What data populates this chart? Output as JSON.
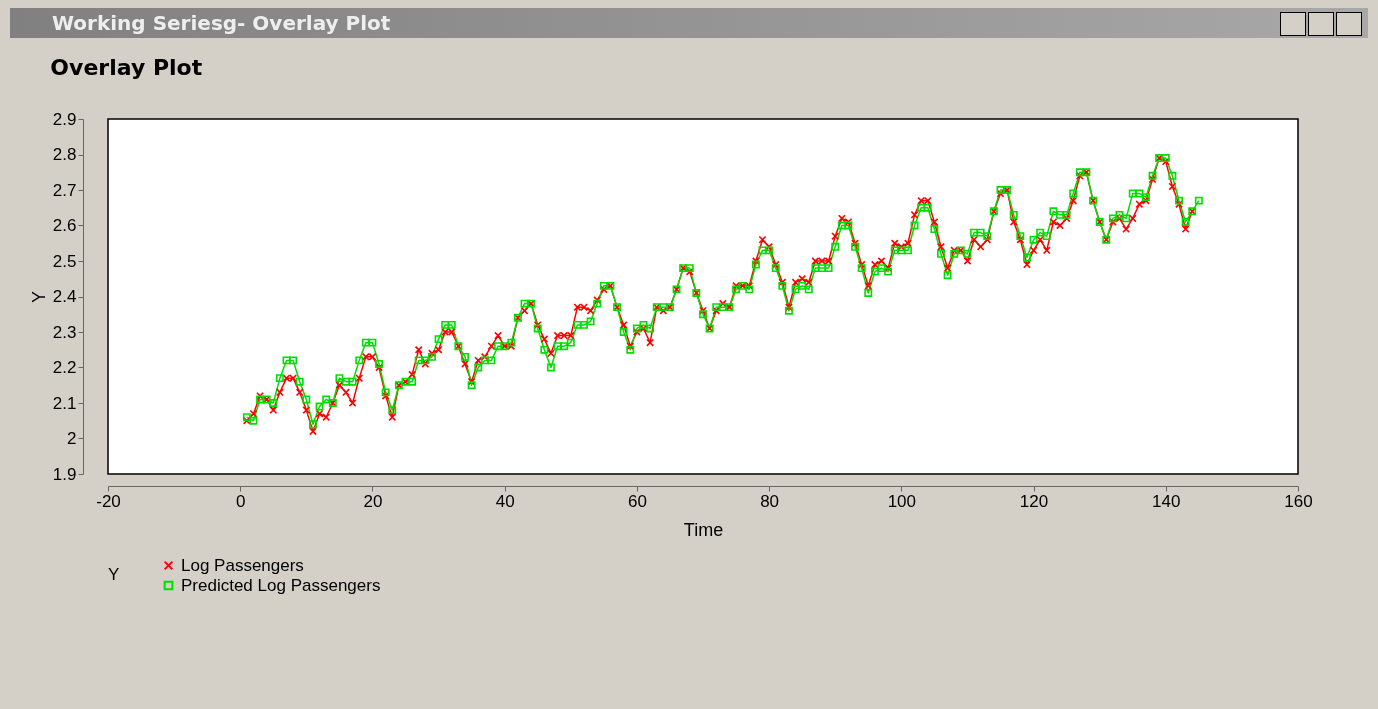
{
  "chart_data": {
    "type": "line",
    "title": "Overlay Plot",
    "annotations": [
      "Working Seriesg- Overlay Plot"
    ],
    "xlabel": "Time",
    "ylabel": "Y",
    "legend_title": "Y",
    "legend": "bottom left",
    "grid": false,
    "xlim": [
      -20,
      160
    ],
    "xticks": [
      -20,
      0,
      20,
      40,
      60,
      80,
      100,
      120,
      140,
      160
    ],
    "ylim": [
      1.9,
      2.9
    ],
    "yticks": [
      1.9,
      2,
      2.1,
      2.2,
      2.3,
      2.4,
      2.5,
      2.6,
      2.7,
      2.8,
      2.9
    ],
    "x": [
      1,
      2,
      3,
      4,
      5,
      6,
      7,
      8,
      9,
      10,
      11,
      12,
      13,
      14,
      15,
      16,
      17,
      18,
      19,
      20,
      21,
      22,
      23,
      24,
      25,
      26,
      27,
      28,
      29,
      30,
      31,
      32,
      33,
      34,
      35,
      36,
      37,
      38,
      39,
      40,
      41,
      42,
      43,
      44,
      45,
      46,
      47,
      48,
      49,
      50,
      51,
      52,
      53,
      54,
      55,
      56,
      57,
      58,
      59,
      60,
      61,
      62,
      63,
      64,
      65,
      66,
      67,
      68,
      69,
      70,
      71,
      72,
      73,
      74,
      75,
      76,
      77,
      78,
      79,
      80,
      81,
      82,
      83,
      84,
      85,
      86,
      87,
      88,
      89,
      90,
      91,
      92,
      93,
      94,
      95,
      96,
      97,
      98,
      99,
      100,
      101,
      102,
      103,
      104,
      105,
      106,
      107,
      108,
      109,
      110,
      111,
      112,
      113,
      114,
      115,
      116,
      117,
      118,
      119,
      120,
      121,
      122,
      123,
      124,
      125,
      126,
      127,
      128,
      129,
      130,
      131,
      132,
      133,
      134,
      135,
      136,
      137,
      138,
      139,
      140,
      141,
      142,
      143,
      144,
      145
    ],
    "series": [
      {
        "name": "Log Passengers",
        "color": "#ff0000",
        "marker": "cross",
        "values": [
          2.05,
          2.07,
          2.12,
          2.11,
          2.08,
          2.13,
          2.17,
          2.17,
          2.13,
          2.08,
          2.02,
          2.07,
          2.06,
          2.1,
          2.15,
          2.13,
          2.1,
          2.17,
          2.23,
          2.23,
          2.2,
          2.12,
          2.06,
          2.15,
          2.16,
          2.18,
          2.25,
          2.21,
          2.24,
          2.25,
          2.3,
          2.3,
          2.26,
          2.21,
          2.16,
          2.22,
          2.23,
          2.26,
          2.29,
          2.26,
          2.26,
          2.34,
          2.36,
          2.38,
          2.32,
          2.28,
          2.24,
          2.29,
          2.29,
          2.29,
          2.37,
          2.37,
          2.36,
          2.39,
          2.42,
          2.43,
          2.37,
          2.32,
          2.26,
          2.3,
          2.31,
          2.27,
          2.37,
          2.36,
          2.37,
          2.42,
          2.48,
          2.47,
          2.41,
          2.36,
          2.31,
          2.36,
          2.38,
          2.37,
          2.43,
          2.43,
          2.43,
          2.5,
          2.56,
          2.54,
          2.49,
          2.44,
          2.37,
          2.44,
          2.45,
          2.44,
          2.5,
          2.5,
          2.5,
          2.57,
          2.62,
          2.61,
          2.55,
          2.49,
          2.43,
          2.49,
          2.5,
          2.48,
          2.55,
          2.54,
          2.55,
          2.63,
          2.67,
          2.67,
          2.61,
          2.54,
          2.48,
          2.53,
          2.53,
          2.5,
          2.56,
          2.54,
          2.56,
          2.64,
          2.69,
          2.7,
          2.61,
          2.56,
          2.49,
          2.53,
          2.56,
          2.53,
          2.61,
          2.6,
          2.62,
          2.67,
          2.74,
          2.75,
          2.67,
          2.61,
          2.56,
          2.61,
          2.62,
          2.59,
          2.62,
          2.66,
          2.67,
          2.73,
          2.79,
          2.78,
          2.71,
          2.66,
          2.59,
          2.64,
          null
        ]
      },
      {
        "name": "Predicted Log Passengers",
        "color": "#00dd00",
        "marker": "square",
        "values": [
          2.06,
          2.05,
          2.11,
          2.11,
          2.1,
          2.17,
          2.22,
          2.22,
          2.16,
          2.11,
          2.04,
          2.09,
          2.11,
          2.1,
          2.17,
          2.16,
          2.16,
          2.22,
          2.27,
          2.27,
          2.21,
          2.13,
          2.08,
          2.15,
          2.16,
          2.16,
          2.22,
          2.22,
          2.23,
          2.28,
          2.32,
          2.32,
          2.26,
          2.23,
          2.15,
          2.2,
          2.22,
          2.22,
          2.26,
          2.26,
          2.27,
          2.34,
          2.38,
          2.38,
          2.31,
          2.25,
          2.2,
          2.26,
          2.26,
          2.27,
          2.32,
          2.32,
          2.33,
          2.38,
          2.43,
          2.43,
          2.37,
          2.3,
          2.25,
          2.31,
          2.32,
          2.31,
          2.37,
          2.37,
          2.37,
          2.42,
          2.48,
          2.48,
          2.41,
          2.35,
          2.31,
          2.37,
          2.37,
          2.37,
          2.42,
          2.43,
          2.42,
          2.49,
          2.53,
          2.53,
          2.48,
          2.43,
          2.36,
          2.42,
          2.43,
          2.42,
          2.48,
          2.48,
          2.48,
          2.54,
          2.6,
          2.6,
          2.54,
          2.48,
          2.41,
          2.47,
          2.48,
          2.47,
          2.53,
          2.53,
          2.53,
          2.6,
          2.65,
          2.65,
          2.59,
          2.52,
          2.46,
          2.52,
          2.53,
          2.52,
          2.58,
          2.58,
          2.57,
          2.64,
          2.7,
          2.7,
          2.63,
          2.57,
          2.51,
          2.56,
          2.58,
          2.57,
          2.64,
          2.63,
          2.63,
          2.69,
          2.75,
          2.75,
          2.67,
          2.61,
          2.56,
          2.62,
          2.63,
          2.62,
          2.69,
          2.69,
          2.68,
          2.74,
          2.79,
          2.79,
          2.74,
          2.67,
          2.61,
          2.64,
          2.67
        ]
      }
    ]
  }
}
